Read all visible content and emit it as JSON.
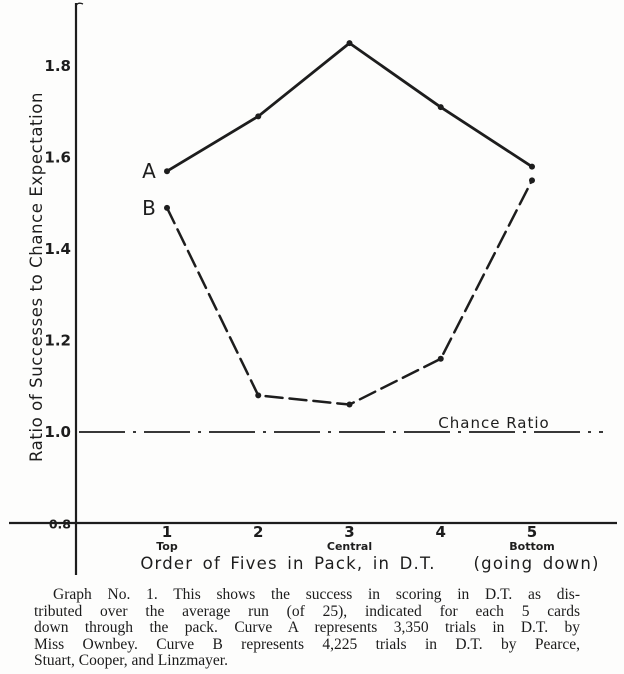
{
  "page": {
    "background": "#fdfdfc",
    "ink_color": "#1d1d1d"
  },
  "chart_data": {
    "type": "line",
    "title": "",
    "xlabel": "Order of Fives in Pack, in D.T.    (going down)",
    "ylabel": "Ratio of Successes to Chance Expectation",
    "categories": [
      "1",
      "2",
      "3",
      "4",
      "5"
    ],
    "category_sublabels": [
      "Top",
      "",
      "Central",
      "",
      "Bottom"
    ],
    "yticks": [
      "1.8",
      "1.6",
      "1.4",
      "1.2",
      "1.0",
      "0.8"
    ],
    "ylim": [
      0.79,
      1.93
    ],
    "grid": false,
    "legend": "inline-labels",
    "series": [
      {
        "name": "A",
        "style": "solid",
        "values": [
          1.57,
          1.69,
          1.85,
          1.71,
          1.58
        ]
      },
      {
        "name": "B",
        "style": "dashed",
        "values": [
          1.49,
          1.08,
          1.06,
          1.16,
          1.55
        ]
      }
    ],
    "reference_line": {
      "label": "Chance Ratio",
      "value": 1.0,
      "style": "dash-dot"
    }
  },
  "caption": {
    "lines": [
      "Graph No. 1.  This shows the success in scoring in D.T. as dis-",
      "tributed over the average run (of 25), indicated for each 5 cards",
      "down through the pack.   Curve A represents 3,350 trials in D.T. by",
      "Miss Ownbey.   Curve B represents 4,225 trials in D.T. by Pearce,",
      "Stuart, Cooper, and Linzmayer."
    ]
  }
}
